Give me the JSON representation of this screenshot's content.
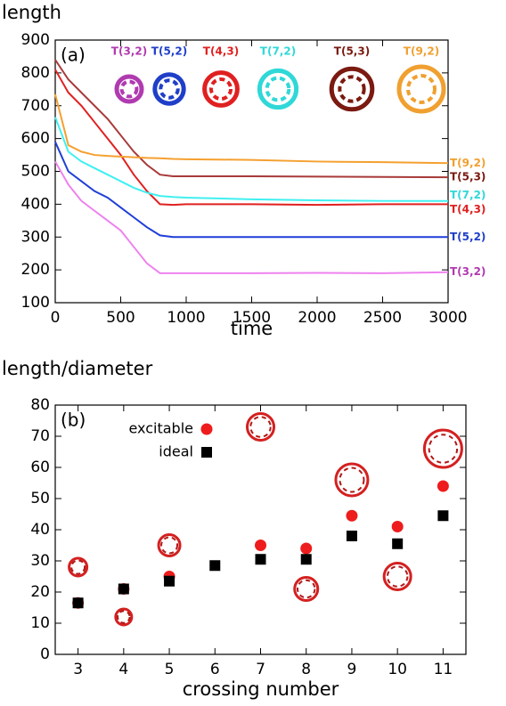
{
  "chart_data": [
    {
      "type": "line",
      "title": "length",
      "xlabel": "time",
      "annotation": "(a)",
      "x": [
        0,
        100,
        200,
        300,
        400,
        500,
        600,
        700,
        800,
        900,
        1000,
        1500,
        2000,
        2500,
        3000
      ],
      "xlim": [
        0,
        3000
      ],
      "ylim": [
        100,
        900
      ],
      "xticks": [
        0,
        500,
        1000,
        1500,
        2000,
        2500,
        3000
      ],
      "yticks": [
        100,
        200,
        300,
        400,
        500,
        600,
        700,
        800,
        900
      ],
      "series": [
        {
          "name": "T(3,2)",
          "color": "#b03ab0",
          "line_color": "#ee82ee",
          "values": [
            530,
            460,
            410,
            380,
            350,
            320,
            270,
            220,
            190,
            190,
            190,
            190,
            191,
            190,
            193
          ]
        },
        {
          "name": "T(5,2)",
          "color": "#1f3fc8",
          "line_color": "#1f3fd8",
          "values": [
            590,
            500,
            470,
            440,
            420,
            390,
            360,
            330,
            305,
            300,
            300,
            300,
            300,
            300,
            300
          ]
        },
        {
          "name": "T(4,3)",
          "color": "#e02020",
          "line_color": "#e02020",
          "values": [
            810,
            740,
            700,
            650,
            600,
            550,
            490,
            440,
            400,
            398,
            400,
            400,
            398,
            400,
            400
          ]
        },
        {
          "name": "T(7,2)",
          "color": "#30d8d8",
          "line_color": "#40f0f0",
          "values": [
            665,
            560,
            530,
            510,
            490,
            470,
            450,
            435,
            425,
            422,
            420,
            415,
            412,
            410,
            410
          ]
        },
        {
          "name": "T(5,3)",
          "color": "#7a1a10",
          "line_color": "#a83a3a",
          "values": [
            840,
            780,
            740,
            700,
            660,
            610,
            560,
            520,
            490,
            485,
            485,
            485,
            484,
            483,
            482
          ]
        },
        {
          "name": "T(9,2)",
          "color": "#f0a030",
          "line_color": "#f5a030",
          "values": [
            735,
            580,
            560,
            550,
            547,
            545,
            543,
            541,
            540,
            538,
            537,
            535,
            530,
            528,
            525
          ]
        }
      ]
    },
    {
      "type": "scatter",
      "title": "length/diameter",
      "xlabel": "crossing number",
      "annotation": "(b)",
      "xlim": [
        2.5,
        11.5
      ],
      "ylim": [
        0,
        80
      ],
      "xticks": [
        3,
        4,
        5,
        6,
        7,
        8,
        9,
        10,
        11
      ],
      "yticks": [
        0,
        10,
        20,
        30,
        40,
        50,
        60,
        70,
        80
      ],
      "legend": "upper left",
      "series": [
        {
          "name": "excitable",
          "color": "#ee1c1c",
          "marker": "circle",
          "x": [
            3,
            4,
            5,
            7,
            8,
            9,
            10,
            11
          ],
          "values": [
            16.5,
            21,
            25,
            35,
            34,
            44.5,
            41,
            54
          ]
        },
        {
          "name": "ideal",
          "color": "#000000",
          "marker": "square",
          "x": [
            3,
            4,
            5,
            6,
            7,
            8,
            9,
            10,
            11
          ],
          "values": [
            16.5,
            21,
            23.5,
            28.5,
            30.5,
            30.5,
            38,
            35.5,
            44.5
          ]
        }
      ]
    }
  ]
}
